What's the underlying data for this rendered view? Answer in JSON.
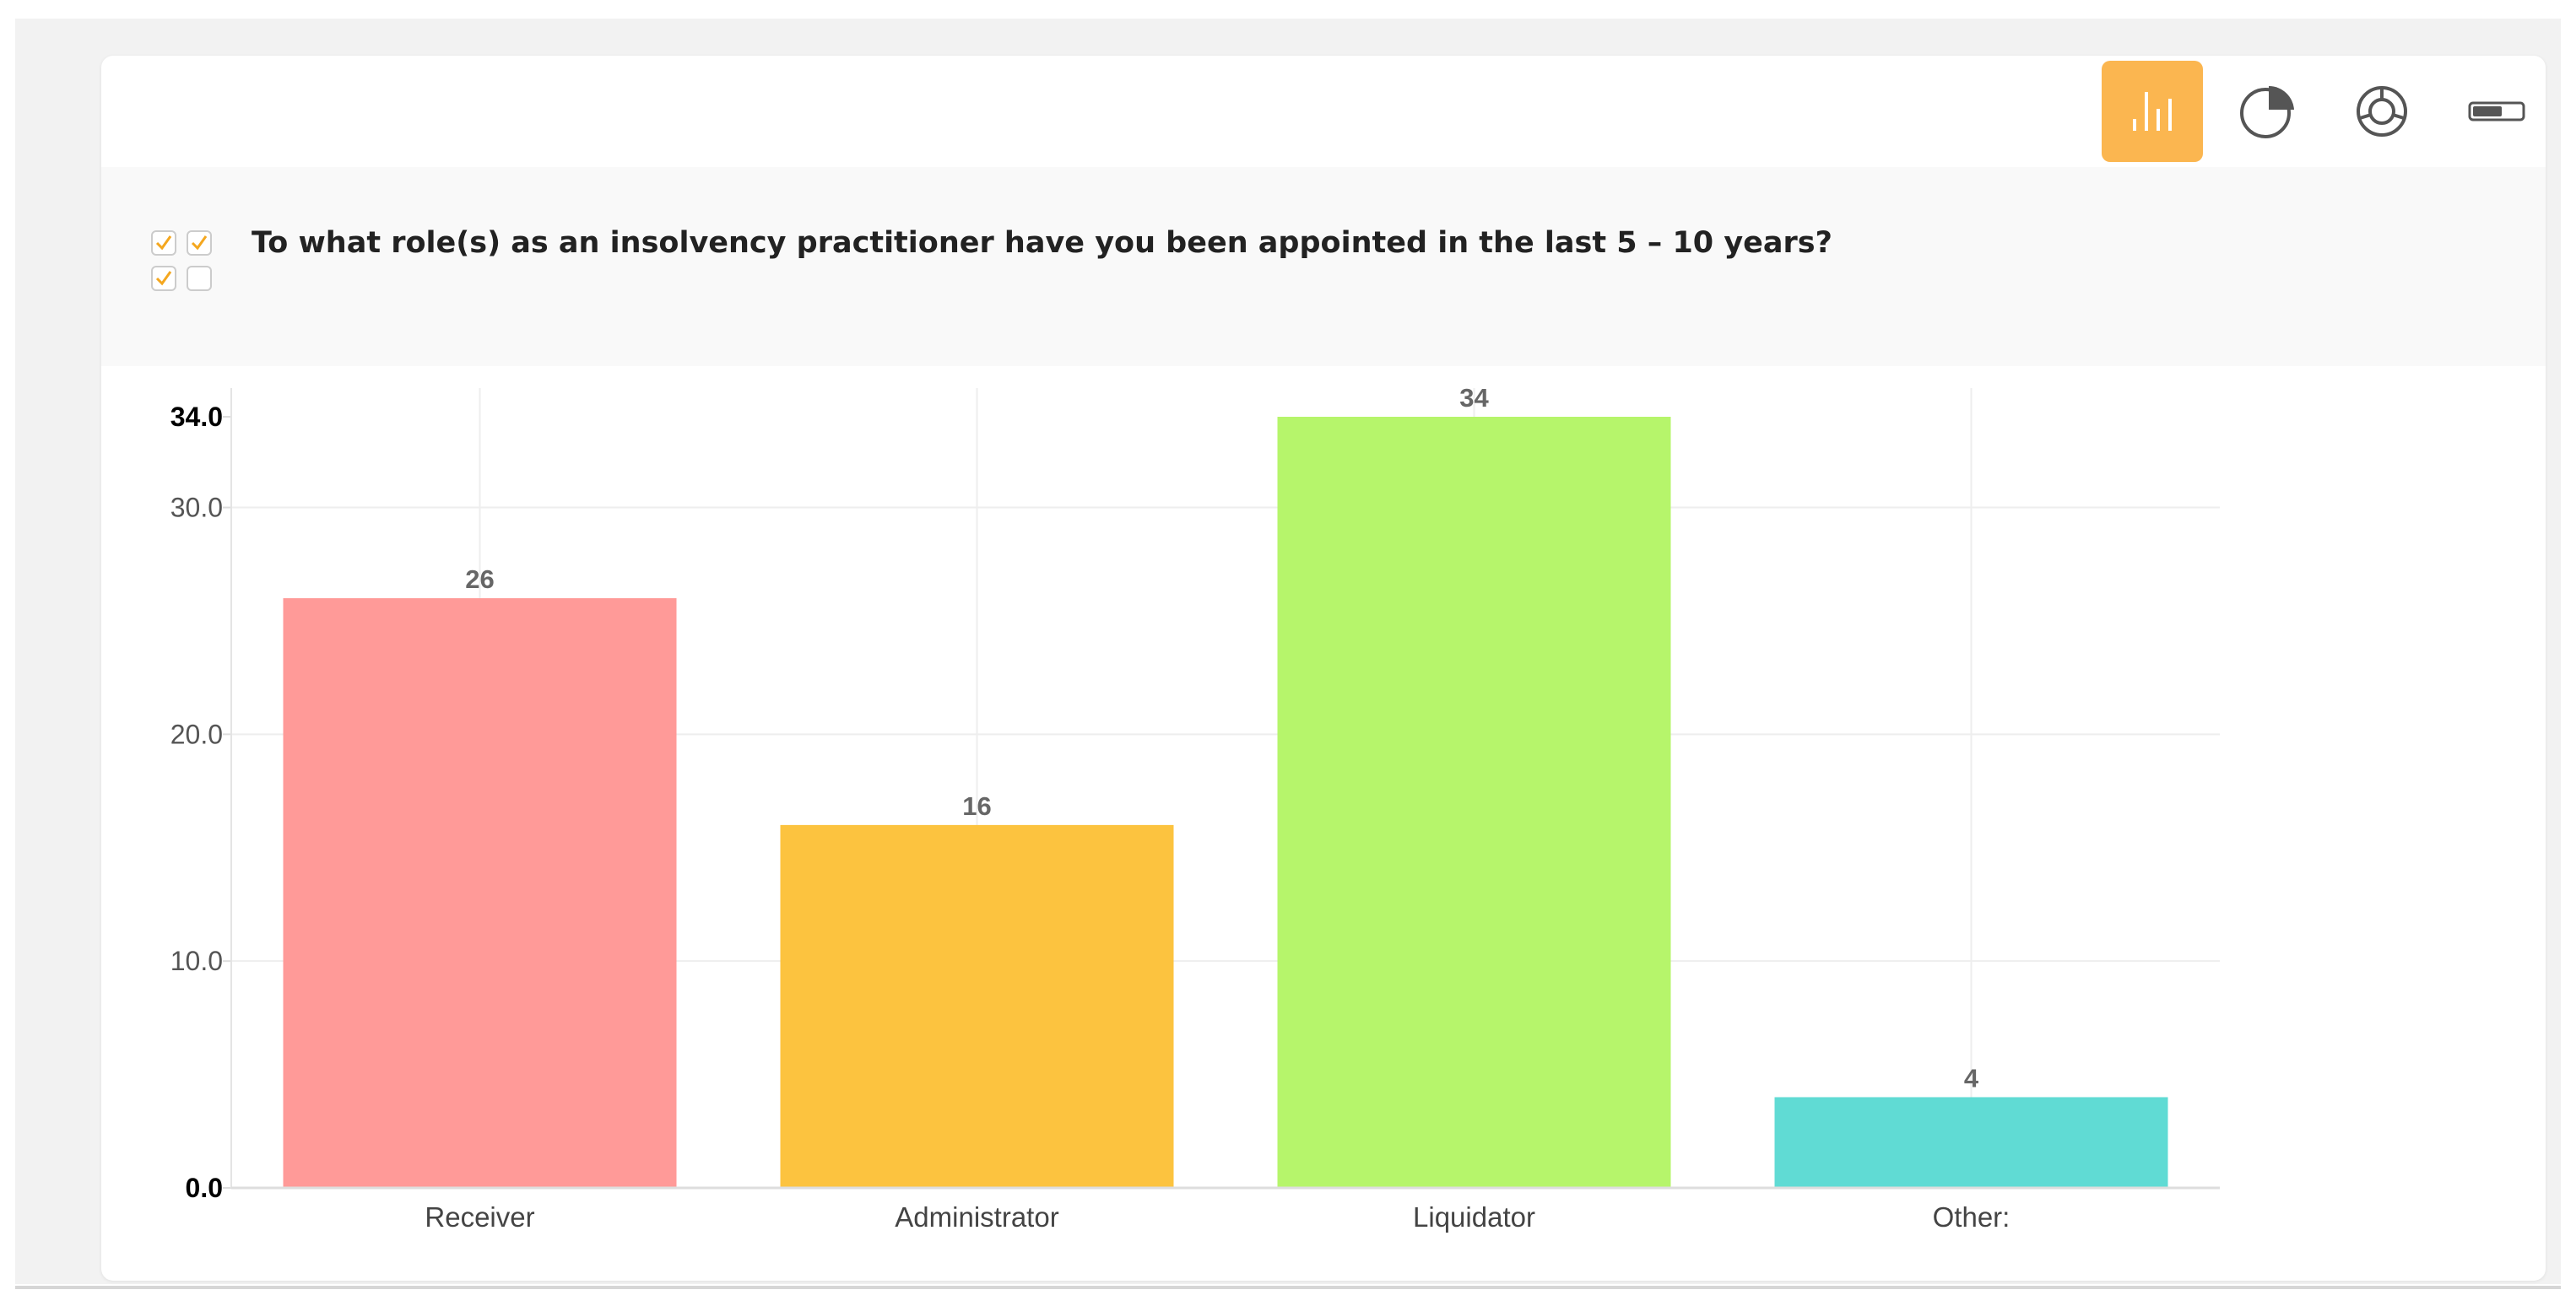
{
  "toolbar": {
    "buttons": [
      {
        "name": "bar-chart",
        "icon": "bar-chart-icon",
        "active": true
      },
      {
        "name": "pie-chart",
        "icon": "pie-chart-icon",
        "active": false
      },
      {
        "name": "donut-chart",
        "icon": "donut-chart-icon",
        "active": false
      },
      {
        "name": "toggle",
        "icon": "toggle-icon",
        "active": false
      }
    ],
    "accent_color": "#fbb650"
  },
  "question": {
    "icon": "checkbox-multiple-icon",
    "text": "To what role(s) as an insolvency practitioner have you been appointed in the last 5 – 10 years?"
  },
  "chart_data": {
    "type": "bar",
    "title": "",
    "xlabel": "",
    "ylabel": "",
    "categories": [
      "Receiver",
      "Administrator",
      "Liquidator",
      "Other:"
    ],
    "values": [
      26,
      16,
      34,
      4
    ],
    "value_labels": [
      "26",
      "16",
      "34",
      "4"
    ],
    "colors": [
      "#ff9a98",
      "#fcc33f",
      "#b6f56b",
      "#60dbd4"
    ],
    "ylim": [
      0,
      34
    ],
    "y_ticks": [
      {
        "value": 0,
        "label": "0.0",
        "bold": true
      },
      {
        "value": 10,
        "label": "10.0",
        "bold": false
      },
      {
        "value": 20,
        "label": "20.0",
        "bold": false
      },
      {
        "value": 30,
        "label": "30.0",
        "bold": false
      },
      {
        "value": 34,
        "label": "34.0",
        "bold": true
      }
    ],
    "grid": true,
    "legend": "none"
  }
}
